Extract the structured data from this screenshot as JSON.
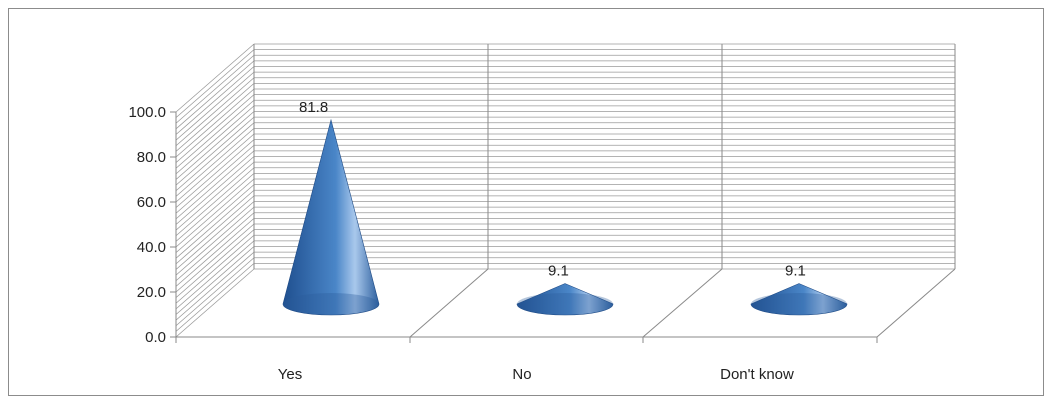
{
  "chart_data": {
    "type": "bar",
    "style": "3d-cone",
    "categories": [
      "Yes",
      "No",
      "Don't know"
    ],
    "values": [
      81.8,
      9.1,
      9.1
    ],
    "data_labels": [
      "81.8",
      "9.1",
      "9.1"
    ],
    "ylim": [
      0,
      100
    ],
    "yticks": [
      "0.0",
      "20.0",
      "40.0",
      "60.0",
      "80.0",
      "100.0"
    ],
    "title": "",
    "xlabel": "",
    "ylabel": "",
    "grid": true,
    "legend": "none",
    "colors": {
      "cone_dark": "#1f4f8f",
      "cone_mid": "#4a86c8",
      "cone_light": "#a9c8ec",
      "grid": "#9a9a9a"
    }
  }
}
